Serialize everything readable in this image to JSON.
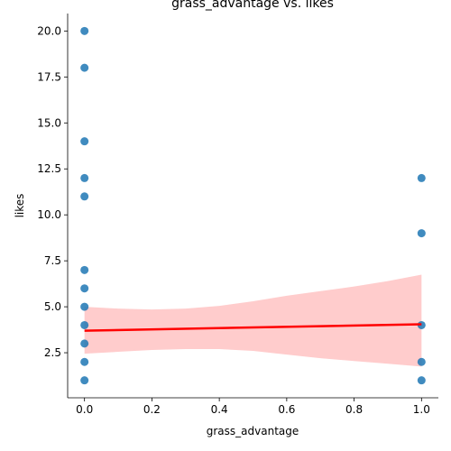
{
  "chart_data": {
    "type": "scatter",
    "title": "grass_advantage vs. likes",
    "xlabel": "grass_advantage",
    "ylabel": "likes",
    "xlim": [
      -0.05,
      1.05
    ],
    "ylim": [
      0.05,
      20.95
    ],
    "x_ticks": [
      0.0,
      0.2,
      0.4,
      0.6,
      0.8,
      1.0
    ],
    "x_tick_labels": [
      "0.0",
      "0.2",
      "0.4",
      "0.6",
      "0.8",
      "1.0"
    ],
    "y_ticks": [
      2.5,
      5.0,
      7.5,
      10.0,
      12.5,
      15.0,
      17.5,
      20.0
    ],
    "y_tick_labels": [
      "2.5",
      "5.0",
      "7.5",
      "10.0",
      "12.5",
      "15.0",
      "17.5",
      "20.0"
    ],
    "grid": false,
    "points": [
      {
        "x": 0,
        "y": 20
      },
      {
        "x": 0,
        "y": 18
      },
      {
        "x": 0,
        "y": 14
      },
      {
        "x": 0,
        "y": 12
      },
      {
        "x": 0,
        "y": 11
      },
      {
        "x": 0,
        "y": 7
      },
      {
        "x": 0,
        "y": 6
      },
      {
        "x": 0,
        "y": 5
      },
      {
        "x": 0,
        "y": 4
      },
      {
        "x": 0,
        "y": 3
      },
      {
        "x": 0,
        "y": 2
      },
      {
        "x": 0,
        "y": 1
      },
      {
        "x": 1,
        "y": 12
      },
      {
        "x": 1,
        "y": 9
      },
      {
        "x": 1,
        "y": 4
      },
      {
        "x": 1,
        "y": 2
      },
      {
        "x": 1,
        "y": 1
      }
    ],
    "regression_line": {
      "x": [
        0,
        1
      ],
      "y": [
        3.7,
        4.05
      ]
    },
    "confidence_band": {
      "x": [
        0.0,
        0.1,
        0.2,
        0.3,
        0.4,
        0.5,
        0.6,
        0.7,
        0.8,
        0.9,
        1.0
      ],
      "upper": [
        5.0,
        4.9,
        4.85,
        4.9,
        5.05,
        5.3,
        5.6,
        5.85,
        6.1,
        6.4,
        6.75
      ],
      "lower": [
        2.45,
        2.55,
        2.65,
        2.7,
        2.7,
        2.6,
        2.4,
        2.2,
        2.05,
        1.9,
        1.75
      ]
    },
    "colors": {
      "points": "#1f77b4",
      "regression_line": "#ff0000",
      "confidence_band": "#ffcccc"
    }
  }
}
